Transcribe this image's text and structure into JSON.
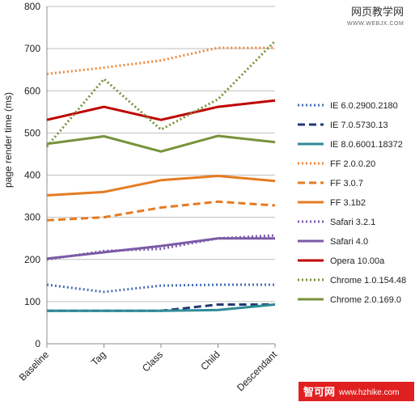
{
  "chart_data": {
    "type": "line",
    "title": "",
    "ylabel": "page render time (ms)",
    "xlabel": "",
    "ylim": [
      0,
      800
    ],
    "yticks": [
      0,
      100,
      200,
      300,
      400,
      500,
      600,
      700,
      800
    ],
    "grid": "horizontal",
    "legend_position": "right",
    "categories": [
      "Baseline",
      "Tag",
      "Class",
      "Child",
      "Descendant"
    ],
    "series": [
      {
        "name": "IE 6.0.2900.2180",
        "color": "#4a6fb5",
        "style": "dotted",
        "values": [
          140,
          123,
          138,
          140,
          140
        ]
      },
      {
        "name": "IE 7.0.5730.13",
        "color": "#1f3b73",
        "style": "dashed",
        "values": [
          78,
          78,
          78,
          93,
          93
        ]
      },
      {
        "name": "IE 8.0.6001.18372",
        "color": "#2e8a97",
        "style": "solid",
        "values": [
          78,
          78,
          78,
          80,
          93
        ]
      },
      {
        "name": "FF 2.0.0.20",
        "color": "#f0883a",
        "style": "dotted",
        "values": [
          640,
          655,
          672,
          702,
          702
        ]
      },
      {
        "name": "FF 3.0.7",
        "color": "#e57b21",
        "style": "dashed",
        "values": [
          293,
          300,
          323,
          337,
          328
        ]
      },
      {
        "name": "FF 3.1b2",
        "color": "#e57b21",
        "style": "solid",
        "values": [
          352,
          360,
          388,
          398,
          386
        ]
      },
      {
        "name": "Safari 3.2.1",
        "color": "#7b5aa6",
        "style": "dotted",
        "values": [
          200,
          220,
          225,
          250,
          257
        ]
      },
      {
        "name": "Safari 4.0",
        "color": "#7b5aa6",
        "style": "solid",
        "values": [
          202,
          217,
          232,
          250,
          250
        ]
      },
      {
        "name": "Opera 10.00a",
        "color": "#c00000",
        "style": "solid",
        "values": [
          531,
          562,
          531,
          562,
          577
        ]
      },
      {
        "name": "Chrome 1.0.154.48",
        "color": "#77933c",
        "style": "dotted",
        "values": [
          468,
          628,
          508,
          580,
          718
        ]
      },
      {
        "name": "Chrome 2.0.169.0",
        "color": "#77933c",
        "style": "solid",
        "values": [
          474,
          492,
          456,
          493,
          478
        ]
      }
    ]
  },
  "watermarks": {
    "top": {
      "line1": "网页教学网",
      "line2": "WWW.WEBJX.COM"
    },
    "bottom": {
      "brand": "智可网",
      "url": "www.hzhike.com",
      "bg": "#e02020"
    }
  }
}
